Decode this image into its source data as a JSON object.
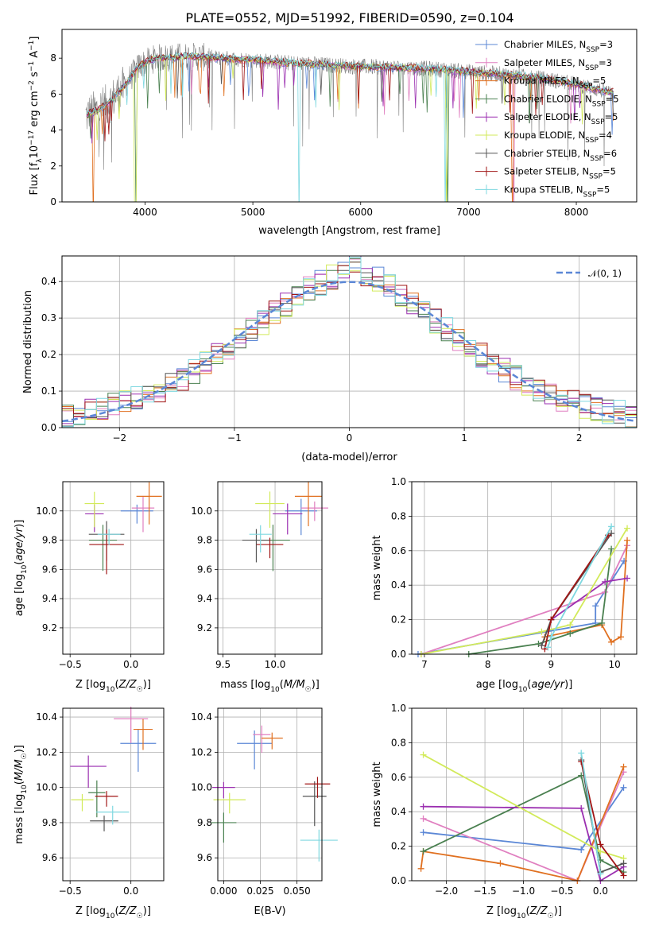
{
  "title": "PLATE=0552, MJD=51992, FIBERID=0590, z=0.104",
  "colors": {
    "chabrier_miles": "#5b87d6",
    "salpeter_miles": "#e07fc0",
    "kroupa_miles": "#e07020",
    "chabrier_elodie": "#4a8050",
    "salpeter_elodie": "#9b2fb0",
    "kroupa_elodie": "#d2ea5a",
    "chabrier_stelib": "#555555",
    "salpeter_stelib": "#a01515",
    "kroupa_stelib": "#7fd8e0",
    "data": "#808080",
    "gaussian": "#5b87d6",
    "grid": "#b0b0b0"
  },
  "chart_data": [
    {
      "id": "spectrum",
      "type": "line",
      "title": "PLATE=0552, MJD=51992, FIBERID=0590, z=0.104",
      "xlabel": "wavelength [Angstrom, rest frame]",
      "ylabel": "Flux [f_λ 10^-17 erg cm^-2 s^-1 A^-1]",
      "xlim": [
        3230,
        8560
      ],
      "ylim": [
        0,
        9.6
      ],
      "xticks": [
        "4000",
        "5000",
        "6000",
        "7000",
        "8000"
      ],
      "yticks": [
        "0",
        "2",
        "4",
        "6",
        "8"
      ],
      "grid": false,
      "legend_position": "top-right",
      "legend": [
        {
          "label": "Chabrier MILES, N",
          "sub": "SSP",
          "suffix": "=3"
        },
        {
          "label": "Salpeter MILES, N",
          "sub": "SSP",
          "suffix": "=3"
        },
        {
          "label": "Kroupa MILES, N",
          "sub": "SSP",
          "suffix": "=5"
        },
        {
          "label": "Chabrier ELODIE, N",
          "sub": "SSP",
          "suffix": "=5"
        },
        {
          "label": "Salpeter ELODIE, N",
          "sub": "SSP",
          "suffix": "=5"
        },
        {
          "label": "Kroupa ELODIE, N",
          "sub": "SSP",
          "suffix": "=4"
        },
        {
          "label": "Chabrier STELIB, N",
          "sub": "SSP",
          "suffix": "=6"
        },
        {
          "label": "Salpeter STELIB, N",
          "sub": "SSP",
          "suffix": "=5"
        },
        {
          "label": "Kroupa STELIB, N",
          "sub": "SSP",
          "suffix": "=5"
        }
      ],
      "continuum": {
        "x": [
          3450,
          3650,
          3800,
          3950,
          4100,
          4400,
          4700,
          5000,
          5300,
          5600,
          5900,
          6200,
          6500,
          6800,
          7100,
          7400,
          7700,
          8000,
          8300
        ],
        "y": [
          4.8,
          5.4,
          6.4,
          7.6,
          8.0,
          8.1,
          8.0,
          7.9,
          7.75,
          7.65,
          7.55,
          7.5,
          7.45,
          7.35,
          7.2,
          7.05,
          6.85,
          6.55,
          6.1
        ]
      }
    },
    {
      "id": "residuals",
      "type": "histogram",
      "xlabel": "(data-model)/error",
      "ylabel": "Normed distribution",
      "xlim": [
        -2.5,
        2.5
      ],
      "ylim": [
        0,
        0.47
      ],
      "xticks": [
        "−2",
        "−1",
        "0",
        "1",
        "2"
      ],
      "yticks": [
        "0.0",
        "0.1",
        "0.2",
        "0.3",
        "0.4"
      ],
      "grid": true,
      "bin_width": 0.1,
      "legend": [
        {
          "label": "𝒩(0, 1)"
        }
      ],
      "legend_position": "top-right"
    },
    {
      "id": "age_vs_Z",
      "type": "scatter",
      "xlabel": "Z [log10(Z/Z☉)]",
      "ylabel": "age [log10(age/yr)]",
      "xlim": [
        -0.56,
        0.27
      ],
      "ylim": [
        9.02,
        10.2
      ],
      "xticks": [
        "−0.5",
        "0.0"
      ],
      "yticks": [
        "9.2",
        "9.4",
        "9.6",
        "9.8",
        "10.0"
      ],
      "grid": true,
      "points": [
        {
          "series": "chabrier_miles",
          "x": 0.05,
          "y": 10.0
        },
        {
          "series": "salpeter_miles",
          "x": 0.1,
          "y": 10.02
        },
        {
          "series": "kroupa_miles",
          "x": 0.15,
          "y": 10.1
        },
        {
          "series": "chabrier_elodie",
          "x": -0.23,
          "y": 9.8
        },
        {
          "series": "salpeter_elodie",
          "x": -0.3,
          "y": 9.98
        },
        {
          "series": "kroupa_elodie",
          "x": -0.3,
          "y": 10.05
        },
        {
          "series": "chabrier_stelib",
          "x": -0.2,
          "y": 9.84
        },
        {
          "series": "salpeter_stelib",
          "x": -0.2,
          "y": 9.77
        },
        {
          "series": "kroupa_stelib",
          "x": -0.18,
          "y": 9.84
        }
      ]
    },
    {
      "id": "age_vs_mass",
      "type": "scatter",
      "xlabel": "mass [log10(M/M☉)]",
      "ylabel": "",
      "xlim": [
        9.45,
        10.45
      ],
      "ylim": [
        9.02,
        10.2
      ],
      "xticks": [
        "9.5",
        "10.0"
      ],
      "yticks": [
        "9.2",
        "9.4",
        "9.6",
        "9.8",
        "10.0"
      ],
      "grid": true,
      "points": [
        {
          "series": "chabrier_miles",
          "x": 10.25,
          "y": 10.0
        },
        {
          "series": "salpeter_miles",
          "x": 10.38,
          "y": 10.02
        },
        {
          "series": "kroupa_miles",
          "x": 10.32,
          "y": 10.1
        },
        {
          "series": "chabrier_elodie",
          "x": 9.98,
          "y": 9.8
        },
        {
          "series": "salpeter_elodie",
          "x": 10.12,
          "y": 9.98
        },
        {
          "series": "kroupa_elodie",
          "x": 9.95,
          "y": 10.05
        },
        {
          "series": "chabrier_stelib",
          "x": 9.82,
          "y": 9.8
        },
        {
          "series": "salpeter_stelib",
          "x": 9.95,
          "y": 9.77
        },
        {
          "series": "kroupa_stelib",
          "x": 9.86,
          "y": 9.84
        }
      ]
    },
    {
      "id": "massweight_vs_age",
      "type": "line",
      "xlabel": "age [log10(age/yr)]",
      "ylabel": "mass weight",
      "xlim": [
        6.8,
        10.35
      ],
      "ylim": [
        0,
        1.0
      ],
      "xticks": [
        "7",
        "8",
        "9",
        "10"
      ],
      "yticks": [
        "0.0",
        "0.2",
        "0.4",
        "0.6",
        "0.8",
        "1.0"
      ],
      "grid": true,
      "series": [
        {
          "key": "chabrier_miles",
          "x": [
            6.9,
            9.7,
            9.7,
            10.15
          ],
          "y": [
            0.0,
            0.18,
            0.28,
            0.54
          ]
        },
        {
          "key": "salpeter_miles",
          "x": [
            6.95,
            9.85,
            10.2
          ],
          "y": [
            0.0,
            0.36,
            0.63
          ]
        },
        {
          "key": "kroupa_miles",
          "x": [
            8.9,
            9.8,
            9.95,
            10.1,
            10.2
          ],
          "y": [
            0.1,
            0.17,
            0.07,
            0.1,
            0.66
          ]
        },
        {
          "key": "chabrier_elodie",
          "x": [
            7.7,
            8.8,
            9.3,
            9.8,
            9.95
          ],
          "y": [
            0.0,
            0.06,
            0.12,
            0.18,
            0.61
          ]
        },
        {
          "key": "salpeter_elodie",
          "x": [
            9.0,
            9.85,
            10.2
          ],
          "y": [
            0.2,
            0.42,
            0.44
          ]
        },
        {
          "key": "kroupa_elodie",
          "x": [
            6.95,
            8.85,
            9.3,
            10.2
          ],
          "y": [
            0.0,
            0.13,
            0.17,
            0.73
          ]
        },
        {
          "key": "chabrier_stelib",
          "x": [
            8.85,
            9.0,
            9.95
          ],
          "y": [
            0.05,
            0.2,
            0.7
          ]
        },
        {
          "key": "salpeter_stelib",
          "x": [
            8.9,
            9.0,
            9.9
          ],
          "y": [
            0.03,
            0.2,
            0.69
          ]
        },
        {
          "key": "kroupa_stelib",
          "x": [
            8.95,
            9.0,
            9.95
          ],
          "y": [
            0.04,
            0.1,
            0.74
          ]
        }
      ]
    },
    {
      "id": "mass_vs_Z",
      "type": "scatter",
      "xlabel": "Z [log10(Z/Z☉)]",
      "ylabel": "mass [log10(M/M☉)]",
      "xlim": [
        -0.56,
        0.27
      ],
      "ylim": [
        9.47,
        10.45
      ],
      "xticks": [
        "−0.5",
        "0.0"
      ],
      "yticks": [
        "9.6",
        "9.8",
        "10.0",
        "10.2",
        "10.4"
      ],
      "grid": true,
      "points": [
        {
          "series": "chabrier_miles",
          "x": 0.06,
          "y": 10.25
        },
        {
          "series": "salpeter_miles",
          "x": 0.0,
          "y": 10.39
        },
        {
          "series": "kroupa_miles",
          "x": 0.1,
          "y": 10.33
        },
        {
          "series": "chabrier_elodie",
          "x": -0.28,
          "y": 9.97
        },
        {
          "series": "salpeter_elodie",
          "x": -0.35,
          "y": 10.12
        },
        {
          "series": "kroupa_elodie",
          "x": -0.4,
          "y": 9.93
        },
        {
          "series": "chabrier_stelib",
          "x": -0.22,
          "y": 9.81
        },
        {
          "series": "salpeter_stelib",
          "x": -0.2,
          "y": 9.95
        },
        {
          "series": "kroupa_stelib",
          "x": -0.15,
          "y": 9.86
        }
      ]
    },
    {
      "id": "mass_vs_ebv",
      "type": "scatter",
      "xlabel": "E(B-V)",
      "ylabel": "",
      "xlim": [
        -0.004,
        0.067
      ],
      "ylim": [
        9.47,
        10.45
      ],
      "xticks": [
        "0.000",
        "0.025",
        "0.050"
      ],
      "yticks": [
        "9.6",
        "9.8",
        "10.0",
        "10.2",
        "10.4"
      ],
      "grid": true,
      "points": [
        {
          "series": "chabrier_miles",
          "x": 0.021,
          "y": 10.25
        },
        {
          "series": "salpeter_miles",
          "x": 0.026,
          "y": 10.3
        },
        {
          "series": "kroupa_miles",
          "x": 0.033,
          "y": 10.28
        },
        {
          "series": "chabrier_elodie",
          "x": 0.0,
          "y": 9.8
        },
        {
          "series": "salpeter_elodie",
          "x": 0.0,
          "y": 10.0
        },
        {
          "series": "kroupa_elodie",
          "x": 0.004,
          "y": 9.93
        },
        {
          "series": "chabrier_stelib",
          "x": 0.062,
          "y": 9.95
        },
        {
          "series": "salpeter_stelib",
          "x": 0.064,
          "y": 10.02
        },
        {
          "series": "kroupa_stelib",
          "x": 0.065,
          "y": 9.7
        }
      ]
    },
    {
      "id": "massweight_vs_Z",
      "type": "line",
      "xlabel": "Z [log10(Z/Z☉)]",
      "ylabel": "mass weight",
      "xlim": [
        -2.45,
        0.47
      ],
      "ylim": [
        0,
        1.0
      ],
      "xticks": [
        "−2.0",
        "−1.5",
        "−1.0",
        "−0.5",
        "0.0"
      ],
      "yticks": [
        "0.0",
        "0.2",
        "0.4",
        "0.6",
        "0.8",
        "1.0"
      ],
      "grid": true,
      "series": [
        {
          "key": "chabrier_miles",
          "x": [
            -2.3,
            -0.25,
            0.3
          ],
          "y": [
            0.28,
            0.18,
            0.54
          ]
        },
        {
          "key": "salpeter_miles",
          "x": [
            -2.3,
            -0.3,
            0.3
          ],
          "y": [
            0.36,
            0.0,
            0.63
          ]
        },
        {
          "key": "kroupa_miles",
          "x": [
            -2.33,
            -2.3,
            -1.3,
            -0.3,
            0.3
          ],
          "y": [
            0.07,
            0.17,
            0.1,
            0.0,
            0.66
          ]
        },
        {
          "key": "chabrier_elodie",
          "x": [
            -2.3,
            -0.25,
            0.0,
            0.3
          ],
          "y": [
            0.17,
            0.61,
            0.12,
            0.05
          ]
        },
        {
          "key": "salpeter_elodie",
          "x": [
            -2.3,
            -0.25,
            0.0,
            0.3
          ],
          "y": [
            0.43,
            0.42,
            0.0,
            0.08
          ]
        },
        {
          "key": "kroupa_elodie",
          "x": [
            -2.3,
            0.0,
            0.3
          ],
          "y": [
            0.73,
            0.17,
            0.13
          ]
        },
        {
          "key": "chabrier_stelib",
          "x": [
            -0.25,
            0.0,
            0.3
          ],
          "y": [
            0.7,
            0.05,
            0.1
          ]
        },
        {
          "key": "salpeter_stelib",
          "x": [
            -0.25,
            0.0,
            0.3
          ],
          "y": [
            0.69,
            0.21,
            0.03
          ]
        },
        {
          "key": "kroupa_stelib",
          "x": [
            -0.25,
            0.0
          ],
          "y": [
            0.74,
            0.04
          ]
        }
      ]
    }
  ]
}
